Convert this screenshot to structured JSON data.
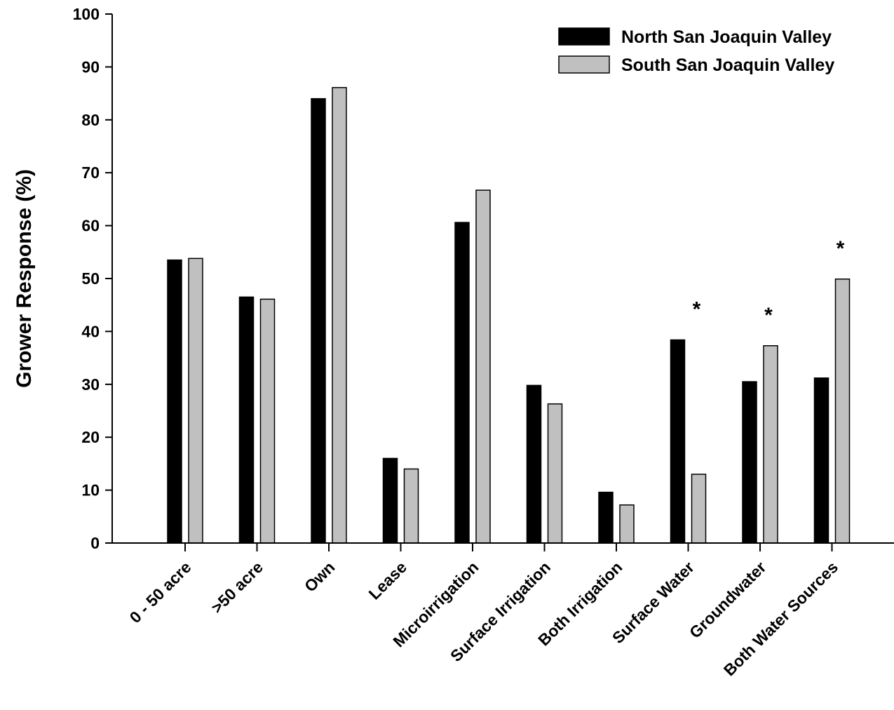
{
  "chart_data": {
    "type": "bar",
    "title": "",
    "xlabel": "",
    "ylabel": "Grower Response (%)",
    "ylim": [
      0,
      100
    ],
    "yticks": [
      0,
      10,
      20,
      30,
      40,
      50,
      60,
      70,
      80,
      90,
      100
    ],
    "grid": false,
    "legend_position": "top-right",
    "categories": [
      "0 - 50 acre",
      ">50 acre",
      "Own",
      "Lease",
      "Microirrigation",
      "Surface Irrigation",
      "Both Irrigation",
      "Surface Water",
      "Groundwater",
      "Both Water Sources"
    ],
    "series": [
      {
        "name": "North San Joaquin Valley",
        "color": "#000000",
        "values": [
          53.5,
          46.5,
          84,
          16,
          60.6,
          29.8,
          9.6,
          38.4,
          30.5,
          31.2
        ]
      },
      {
        "name": "South San Joaquin Valley",
        "color": "#c0c0c0",
        "values": [
          53.8,
          46.1,
          86.1,
          14,
          66.7,
          26.3,
          7.2,
          13,
          37.3,
          49.9
        ]
      }
    ],
    "annotations": [
      {
        "text": "*",
        "category": "Surface Water"
      },
      {
        "text": "*",
        "category": "Groundwater"
      },
      {
        "text": "*",
        "category": "Both Water Sources"
      }
    ]
  }
}
